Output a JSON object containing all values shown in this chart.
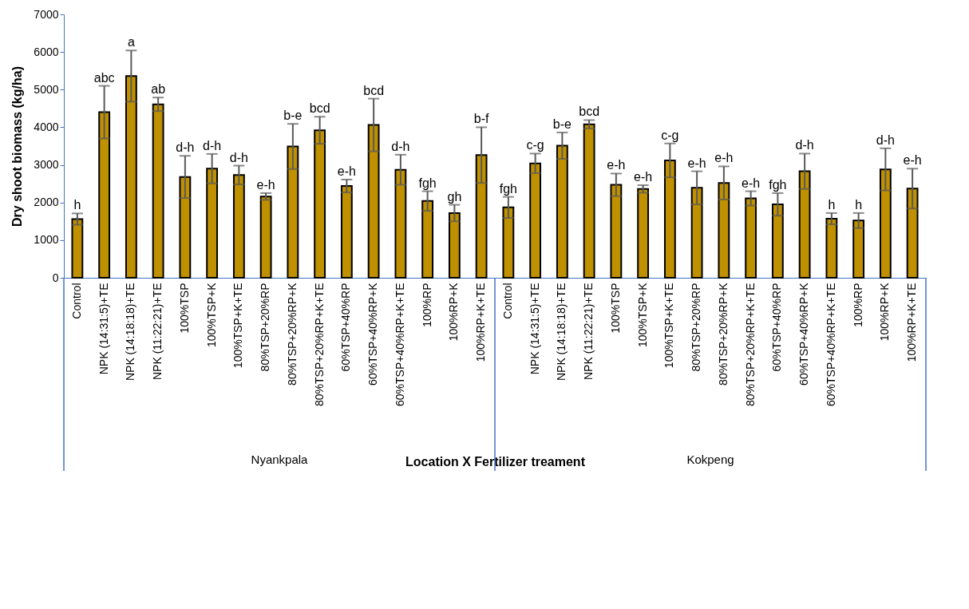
{
  "chart_data": {
    "type": "bar",
    "xlabel": "Location X Fertilizer treament",
    "ylabel": "Dry shoot biomass (kg/ha)",
    "categories": [
      "Control",
      "NPK (14:31:5)+TE",
      "NPK (14:18:18)+TE",
      "NPK (11:22:21)+TE",
      "100%TSP",
      "100%TSP+K",
      "100%TSP+K+TE",
      "80%TSP+20%RP",
      "80%TSP+20%RP+K",
      "80%TSP+20%RP+K+TE",
      "60%TSP+40%RP",
      "60%TSP+40%RP+K",
      "60%TSP+40%RP+K+TE",
      "100%RP",
      "100%RP+K",
      "100%RP+K+TE",
      "Control",
      "NPK (14:31:5)+TE",
      "NPK (14:18:18)+TE",
      "NPK (11:22:21)+TE",
      "100%TSP",
      "100%TSP+K",
      "100%TSP+K+TE",
      "80%TSP+20%RP",
      "80%TSP+20%RP+K",
      "80%TSP+20%RP+K+TE",
      "60%TSP+40%RP",
      "60%TSP+40%RP+K",
      "60%TSP+40%RP+K+TE",
      "100%RP",
      "100%RP+K",
      "100%RP+K+TE"
    ],
    "values": [
      1560,
      4400,
      5360,
      4610,
      2680,
      2900,
      2730,
      2160,
      3490,
      3920,
      2440,
      4060,
      2870,
      2040,
      1720,
      3260,
      1870,
      3040,
      3510,
      4080,
      2470,
      2360,
      3120,
      2390,
      2520,
      2110,
      1950,
      2830,
      1570,
      1520,
      2880,
      2370
    ],
    "errors": [
      150,
      700,
      680,
      180,
      560,
      390,
      250,
      90,
      600,
      360,
      170,
      700,
      400,
      260,
      220,
      740,
      280,
      260,
      350,
      110,
      300,
      100,
      450,
      440,
      440,
      190,
      300,
      470,
      150,
      200,
      560,
      530
    ],
    "value_labels": [
      "h",
      "abc",
      "a",
      "ab",
      "d-h",
      "d-h",
      "d-h",
      "e-h",
      "b-e",
      "bcd",
      "e-h",
      "bcd",
      "d-h",
      "fgh",
      "gh",
      "b-f",
      "fgh",
      "c-g",
      "b-e",
      "bcd",
      "e-h",
      "e-h",
      "c-g",
      "e-h",
      "e-h",
      "e-h",
      "fgh",
      "d-h",
      "h",
      "h",
      "d-h",
      "e-h"
    ],
    "color": "#bf9000",
    "annotations": [
      "Nyankpala",
      "Kokpeng"
    ],
    "ylim": [
      0,
      7000
    ],
    "yticks": [
      0,
      1000,
      2000,
      3000,
      4000,
      5000,
      6000,
      7000
    ],
    "grid": false
  }
}
